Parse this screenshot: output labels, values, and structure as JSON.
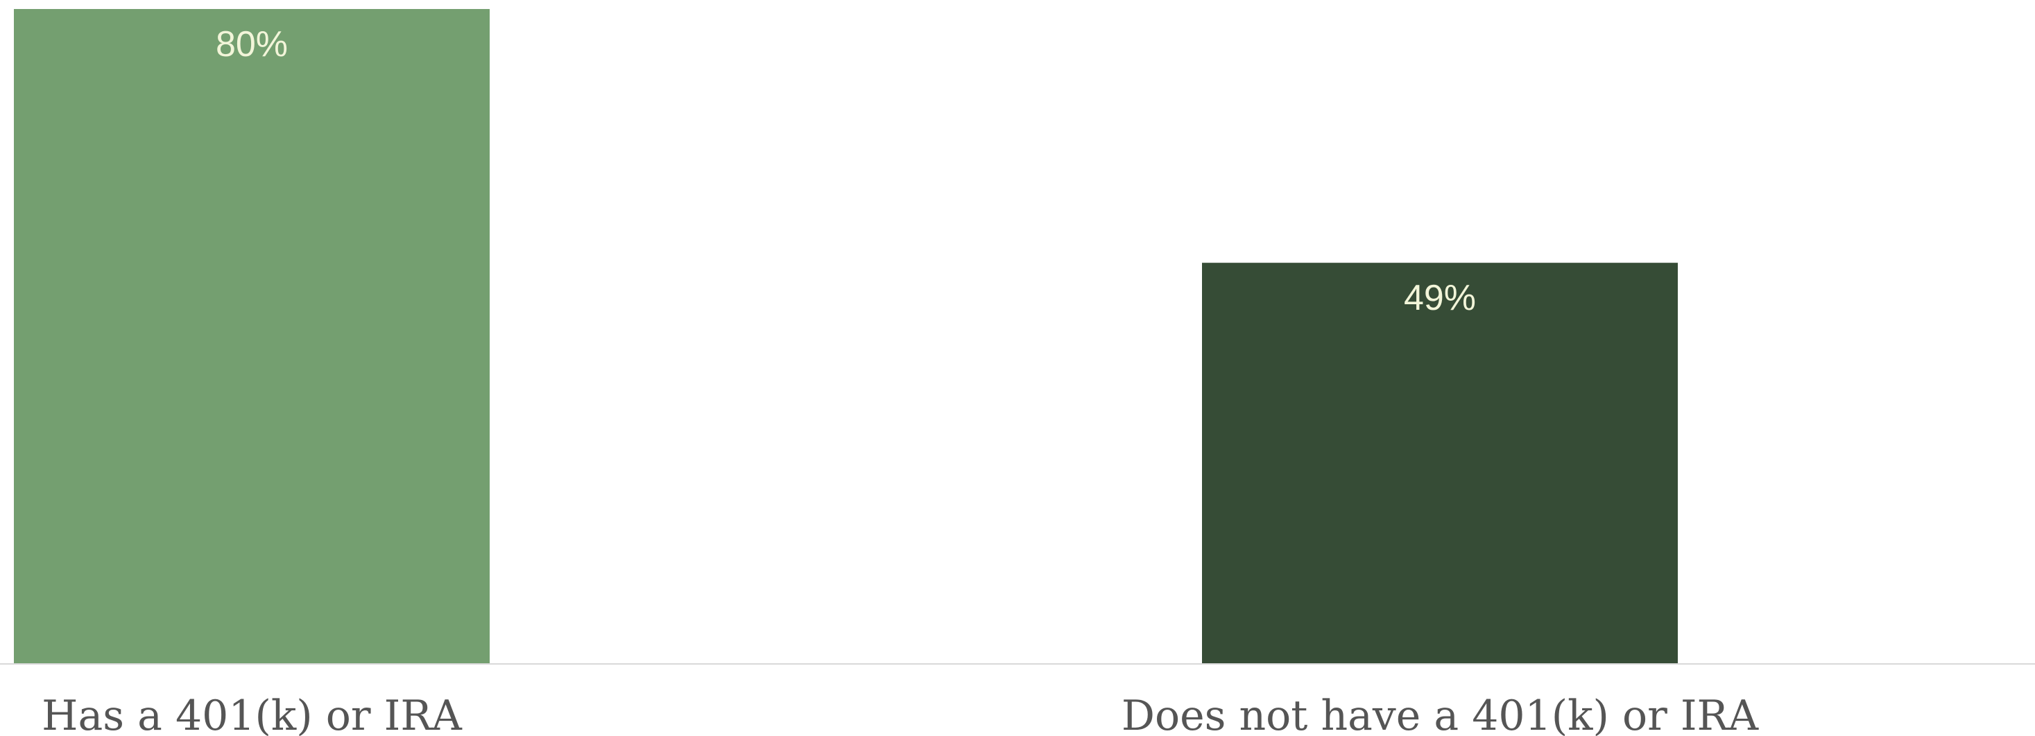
{
  "chart_data": {
    "type": "bar",
    "title": "",
    "xlabel": "",
    "ylabel": "",
    "categories": [
      "Has a 401(k) or IRA",
      "Does not have a 401(k) or IRA"
    ],
    "values": [
      80,
      49
    ],
    "value_labels": [
      "80%",
      "49%"
    ],
    "unit": "%",
    "ylim": [
      0,
      80
    ],
    "grid": false,
    "legend": "none",
    "bar_colors": [
      "#749f70",
      "#364c36"
    ],
    "value_label_color": "#f2f5d9",
    "baseline_color": "#d9d9d9",
    "category_label_color": "#555555"
  }
}
